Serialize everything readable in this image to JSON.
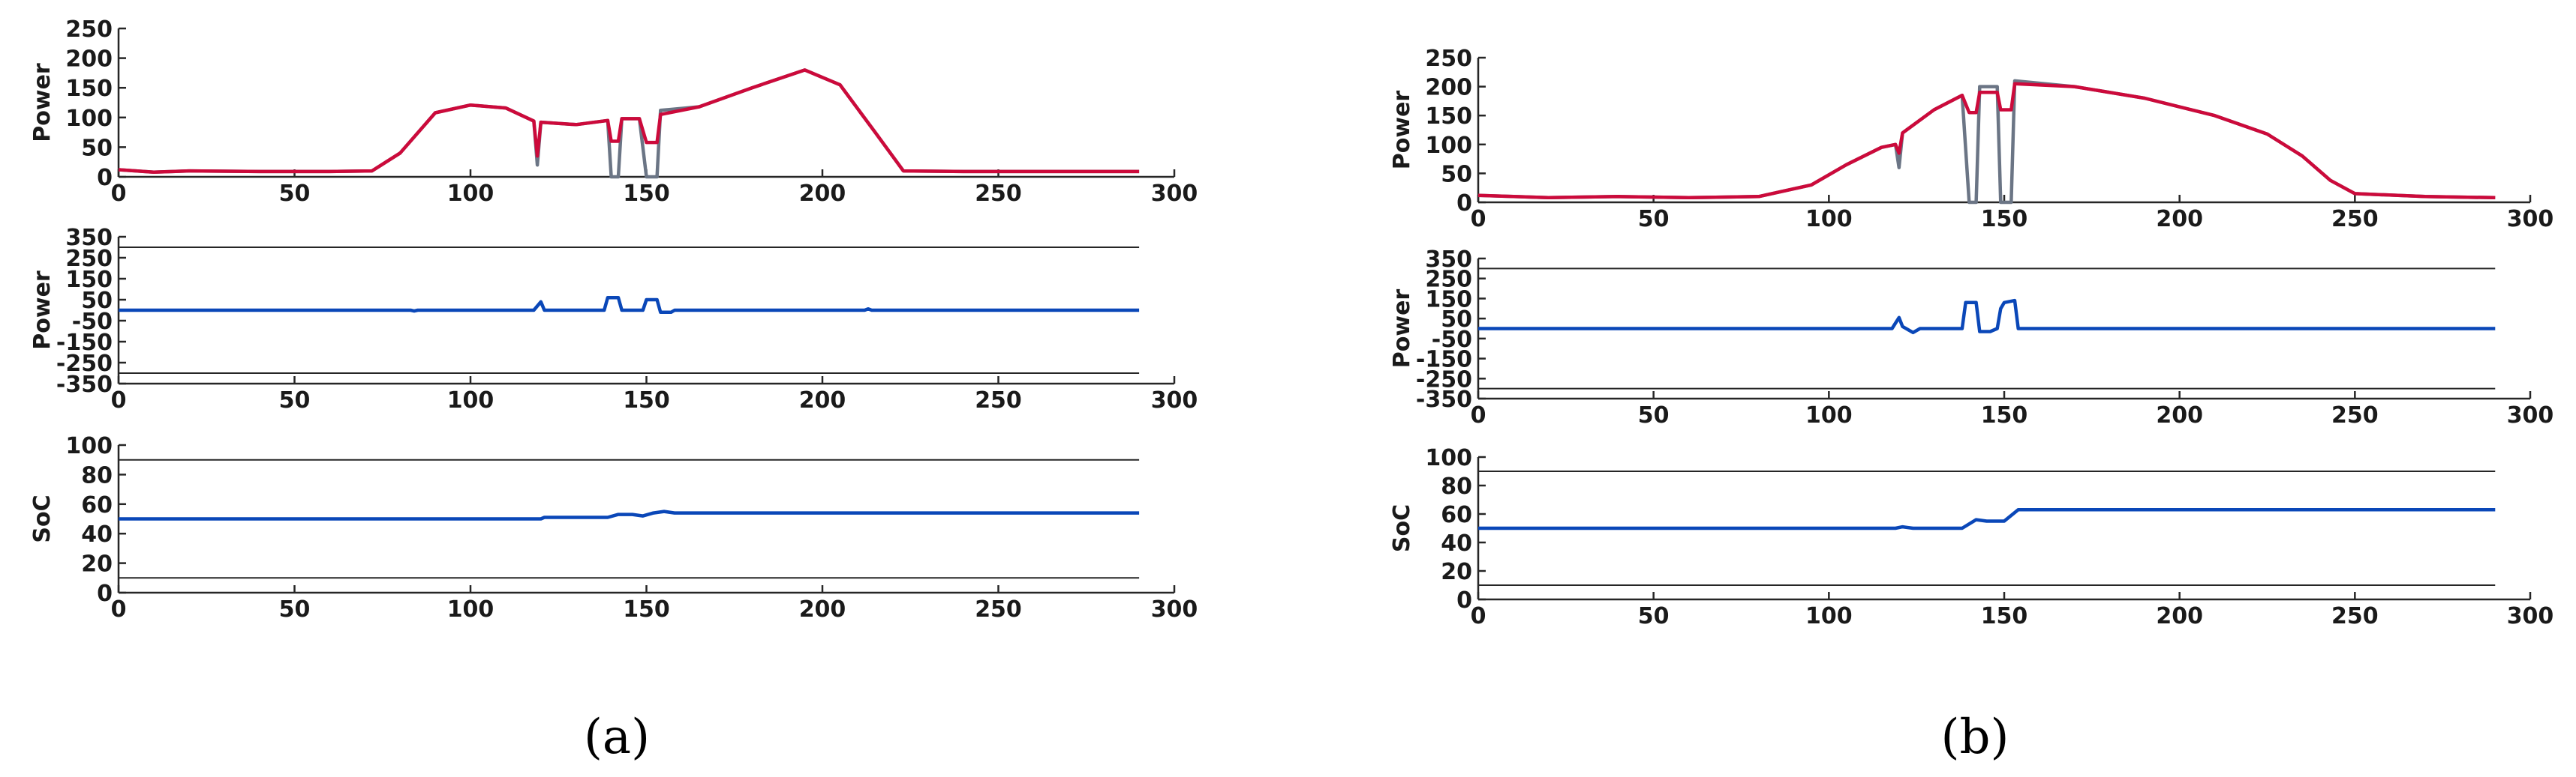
{
  "captions": {
    "a": "(a)",
    "b": "(b)"
  },
  "colors": {
    "gray": "#6b7585",
    "red": "#cc0a3b",
    "blue": "#0a47b8",
    "axis": "#262626"
  },
  "chart_data": [
    {
      "id": "a-power",
      "type": "line",
      "panel": "a",
      "ylabel": "Power",
      "xlim": [
        0,
        300
      ],
      "ylim": [
        0,
        250
      ],
      "xticks": [
        "0",
        "50",
        "100",
        "150",
        "200",
        "250",
        "300"
      ],
      "yticks": [
        "0",
        "50",
        "100",
        "150",
        "200",
        "250"
      ],
      "series": [
        {
          "color": "gray",
          "points": [
            [
              0,
              12
            ],
            [
              10,
              8
            ],
            [
              20,
              10
            ],
            [
              40,
              9
            ],
            [
              60,
              9
            ],
            [
              72,
              10
            ],
            [
              80,
              40
            ],
            [
              90,
              108
            ],
            [
              100,
              121
            ],
            [
              110,
              116
            ],
            [
              118,
              94
            ],
            [
              119,
              20
            ],
            [
              120,
              92
            ],
            [
              130,
              88
            ],
            [
              139,
              95
            ],
            [
              140,
              0
            ],
            [
              142,
              0
            ],
            [
              143,
              98
            ],
            [
              148,
              98
            ],
            [
              150,
              0
            ],
            [
              153,
              0
            ],
            [
              154,
              112
            ],
            [
              165,
              118
            ],
            [
              180,
              150
            ],
            [
              195,
              180
            ],
            [
              205,
              155
            ],
            [
              215,
              75
            ],
            [
              223,
              10
            ],
            [
              240,
              9
            ],
            [
              260,
              9
            ],
            [
              280,
              9
            ],
            [
              290,
              9
            ]
          ]
        },
        {
          "color": "red",
          "points": [
            [
              0,
              12
            ],
            [
              10,
              8
            ],
            [
              20,
              10
            ],
            [
              40,
              9
            ],
            [
              60,
              9
            ],
            [
              72,
              10
            ],
            [
              80,
              40
            ],
            [
              90,
              108
            ],
            [
              100,
              121
            ],
            [
              110,
              116
            ],
            [
              118,
              94
            ],
            [
              119,
              35
            ],
            [
              120,
              92
            ],
            [
              130,
              88
            ],
            [
              139,
              95
            ],
            [
              140,
              60
            ],
            [
              142,
              60
            ],
            [
              143,
              98
            ],
            [
              148,
              98
            ],
            [
              150,
              58
            ],
            [
              153,
              58
            ],
            [
              154,
              105
            ],
            [
              165,
              118
            ],
            [
              180,
              150
            ],
            [
              195,
              180
            ],
            [
              205,
              155
            ],
            [
              215,
              75
            ],
            [
              223,
              10
            ],
            [
              240,
              9
            ],
            [
              260,
              9
            ],
            [
              280,
              9
            ],
            [
              290,
              9
            ]
          ]
        }
      ]
    },
    {
      "id": "a-battery",
      "type": "line",
      "panel": "a",
      "ylabel": "Power",
      "xlim": [
        0,
        300
      ],
      "ylim": [
        -350,
        350
      ],
      "hlines": [
        300,
        -300
      ],
      "xticks": [
        "0",
        "50",
        "100",
        "150",
        "200",
        "250",
        "300"
      ],
      "yticks": [
        "350",
        "250",
        "150",
        "50",
        "-50",
        "-150",
        "-250",
        "-350"
      ],
      "series": [
        {
          "color": "blue",
          "points": [
            [
              0,
              0
            ],
            [
              83,
              0
            ],
            [
              84,
              -4
            ],
            [
              85,
              0
            ],
            [
              118,
              0
            ],
            [
              120,
              40
            ],
            [
              121,
              0
            ],
            [
              138,
              0
            ],
            [
              139,
              60
            ],
            [
              142,
              60
            ],
            [
              143,
              0
            ],
            [
              149,
              0
            ],
            [
              150,
              50
            ],
            [
              153,
              50
            ],
            [
              154,
              -10
            ],
            [
              157,
              -10
            ],
            [
              158,
              0
            ],
            [
              212,
              0
            ],
            [
              213,
              6
            ],
            [
              214,
              0
            ],
            [
              290,
              0
            ]
          ]
        }
      ]
    },
    {
      "id": "a-soc",
      "type": "line",
      "panel": "a",
      "ylabel": "SoC",
      "xlim": [
        0,
        300
      ],
      "ylim": [
        0,
        100
      ],
      "hlines": [
        90,
        10
      ],
      "xticks": [
        "0",
        "50",
        "100",
        "150",
        "200",
        "250",
        "300"
      ],
      "yticks": [
        "0",
        "20",
        "40",
        "60",
        "80",
        "100"
      ],
      "series": [
        {
          "color": "blue",
          "points": [
            [
              0,
              50
            ],
            [
              120,
              50
            ],
            [
              121,
              51
            ],
            [
              139,
              51
            ],
            [
              142,
              53
            ],
            [
              146,
              53
            ],
            [
              149,
              52
            ],
            [
              152,
              54
            ],
            [
              155,
              55
            ],
            [
              158,
              54
            ],
            [
              200,
              54
            ],
            [
              290,
              54
            ]
          ]
        }
      ]
    },
    {
      "id": "b-power",
      "type": "line",
      "panel": "b",
      "ylabel": "Power",
      "xlim": [
        0,
        300
      ],
      "ylim": [
        0,
        250
      ],
      "xticks": [
        "0",
        "50",
        "100",
        "150",
        "200",
        "250",
        "300"
      ],
      "yticks": [
        "0",
        "50",
        "100",
        "150",
        "200",
        "250"
      ],
      "series": [
        {
          "color": "gray",
          "points": [
            [
              0,
              12
            ],
            [
              20,
              8
            ],
            [
              40,
              10
            ],
            [
              60,
              8
            ],
            [
              80,
              10
            ],
            [
              95,
              30
            ],
            [
              105,
              65
            ],
            [
              115,
              95
            ],
            [
              119,
              100
            ],
            [
              120,
              60
            ],
            [
              121,
              120
            ],
            [
              130,
              160
            ],
            [
              138,
              185
            ],
            [
              140,
              0
            ],
            [
              142,
              0
            ],
            [
              143,
              200
            ],
            [
              148,
              200
            ],
            [
              149,
              0
            ],
            [
              152,
              0
            ],
            [
              153,
              210
            ],
            [
              170,
              200
            ],
            [
              190,
              180
            ],
            [
              210,
              150
            ],
            [
              225,
              118
            ],
            [
              235,
              80
            ],
            [
              243,
              38
            ],
            [
              250,
              15
            ],
            [
              270,
              10
            ],
            [
              290,
              8
            ]
          ]
        },
        {
          "color": "red",
          "points": [
            [
              0,
              12
            ],
            [
              20,
              8
            ],
            [
              40,
              10
            ],
            [
              60,
              8
            ],
            [
              80,
              10
            ],
            [
              95,
              30
            ],
            [
              105,
              65
            ],
            [
              115,
              95
            ],
            [
              119,
              100
            ],
            [
              120,
              85
            ],
            [
              121,
              120
            ],
            [
              130,
              160
            ],
            [
              138,
              185
            ],
            [
              140,
              155
            ],
            [
              142,
              155
            ],
            [
              143,
              190
            ],
            [
              148,
              190
            ],
            [
              149,
              160
            ],
            [
              152,
              160
            ],
            [
              153,
              205
            ],
            [
              170,
              200
            ],
            [
              190,
              180
            ],
            [
              210,
              150
            ],
            [
              225,
              118
            ],
            [
              235,
              80
            ],
            [
              243,
              38
            ],
            [
              250,
              15
            ],
            [
              270,
              10
            ],
            [
              290,
              8
            ]
          ]
        }
      ]
    },
    {
      "id": "b-battery",
      "type": "line",
      "panel": "b",
      "ylabel": "Power",
      "xlim": [
        0,
        300
      ],
      "ylim": [
        -350,
        350
      ],
      "hlines": [
        300,
        -300
      ],
      "xticks": [
        "0",
        "50",
        "100",
        "150",
        "200",
        "250",
        "300"
      ],
      "yticks": [
        "350",
        "250",
        "150",
        "50",
        "-50",
        "-150",
        "-250",
        "-350"
      ],
      "series": [
        {
          "color": "blue",
          "points": [
            [
              0,
              0
            ],
            [
              118,
              0
            ],
            [
              120,
              55
            ],
            [
              121,
              10
            ],
            [
              124,
              -20
            ],
            [
              126,
              0
            ],
            [
              138,
              0
            ],
            [
              139,
              130
            ],
            [
              142,
              130
            ],
            [
              143,
              -15
            ],
            [
              146,
              -15
            ],
            [
              148,
              0
            ],
            [
              149,
              100
            ],
            [
              150,
              130
            ],
            [
              153,
              140
            ],
            [
              154,
              0
            ],
            [
              290,
              0
            ]
          ]
        }
      ]
    },
    {
      "id": "b-soc",
      "type": "line",
      "panel": "b",
      "ylabel": "SoC",
      "xlim": [
        0,
        300
      ],
      "ylim": [
        0,
        100
      ],
      "hlines": [
        90,
        10
      ],
      "xticks": [
        "0",
        "50",
        "100",
        "150",
        "200",
        "250",
        "300"
      ],
      "yticks": [
        "0",
        "20",
        "40",
        "60",
        "80",
        "100"
      ],
      "series": [
        {
          "color": "blue",
          "points": [
            [
              0,
              50
            ],
            [
              119,
              50
            ],
            [
              121,
              51
            ],
            [
              124,
              50
            ],
            [
              138,
              50
            ],
            [
              142,
              56
            ],
            [
              145,
              55
            ],
            [
              150,
              55
            ],
            [
              154,
              63
            ],
            [
              200,
              63
            ],
            [
              290,
              63
            ]
          ]
        }
      ]
    }
  ]
}
